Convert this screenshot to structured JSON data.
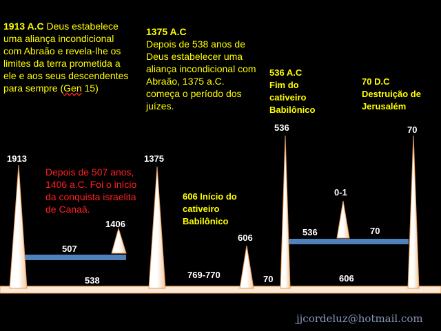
{
  "texts": {
    "t1913_year": "1913 A.C",
    "t1913_body": " Deus estabelece uma aliança incondicional com Abraão e revela-lhe os limites da terra prometida a ele e aos seus descendentes para sempre (",
    "t1913_gen": "Gen",
    "t1913_end": " 15)",
    "t1375_year": "1375 A.C",
    "t1375_body": "Depois de 538 anos de Deus estabelecer uma aliança incondicional com Abraão, 1375 a.C.  começa o período dos juízes.",
    "t536_title": "536 A.C",
    "t536_body": "Fim do cativeiro Babilônico",
    "t70_title": "70 D.C",
    "t70_body": "Destruição de Jerusalém",
    "t606_body": "606 Início do cativeiro Babilônico",
    "red_text": "Depois de 507 anos, 1406 a.C. Foi  o  início da conquista israelita de Canaã."
  },
  "labels": {
    "p1913": "1913",
    "p1375": "1375",
    "p1406": "1406",
    "p606": "606",
    "p536": "536",
    "p01": "0-1",
    "p70": "70",
    "s507": "507",
    "s538": "538",
    "s769": "769-770",
    "s70": "70",
    "s606": "606",
    "b536": "536",
    "b70": "70"
  },
  "footer": {
    "email": "jjcordeluz@hotmail.com"
  },
  "colors": {
    "spike": "#ffffff",
    "spike_fill": "#f6d9bf",
    "bar": "#4f81bd",
    "baseline_fill": "#fbe9d8"
  }
}
